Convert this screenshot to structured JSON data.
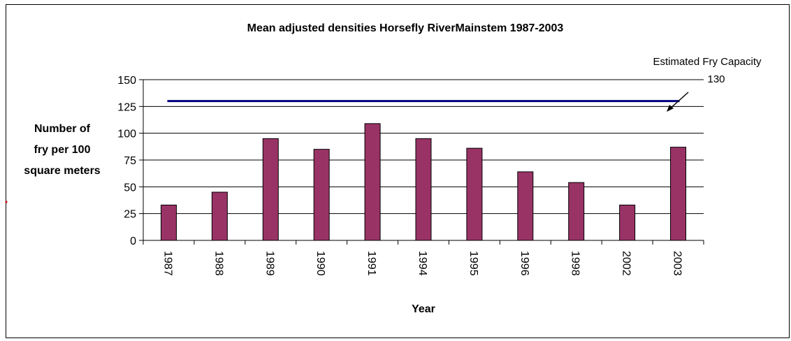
{
  "chart_data": {
    "type": "bar",
    "title": "Mean adjusted densities Horsefly RiverMainstem 1987-2003",
    "xlabel": "Year",
    "ylabel_lines": [
      "Number of",
      "fry per 100",
      "square meters"
    ],
    "categories": [
      "1987",
      "1988",
      "1989",
      "1990",
      "1991",
      "1994",
      "1995",
      "1996",
      "1998",
      "2002",
      "2003"
    ],
    "values": [
      33,
      45,
      95,
      85,
      109,
      95,
      86,
      64,
      54,
      33,
      87
    ],
    "ylim": [
      0,
      150
    ],
    "yticks": [
      0,
      25,
      50,
      75,
      100,
      125,
      150
    ],
    "grid": true,
    "reference_line": {
      "value": 130,
      "label": "Estimated Fry Capacity",
      "value_label": "130",
      "color": "#000080"
    },
    "colors": {
      "bar": "#993366",
      "bar_edge": "#000000"
    }
  }
}
